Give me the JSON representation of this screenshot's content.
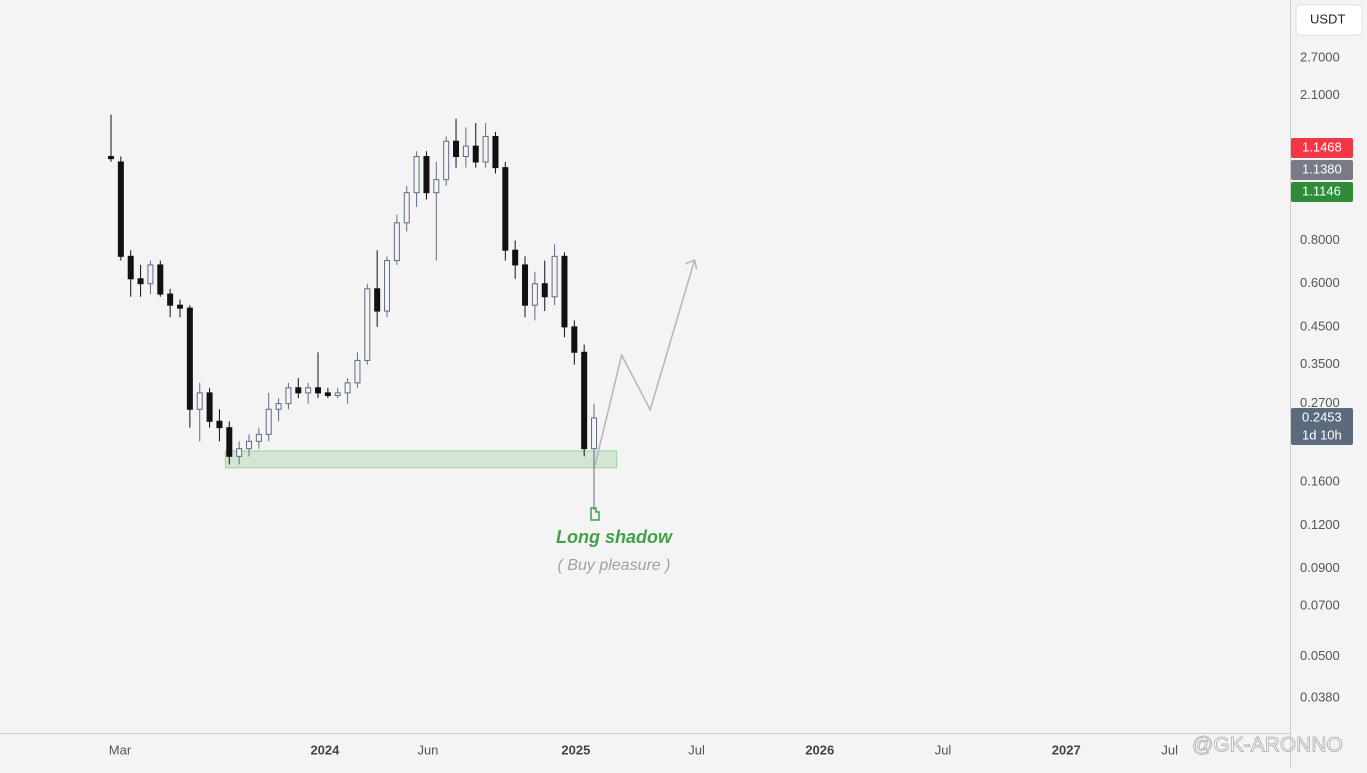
{
  "chart_data": {
    "type": "candlestick",
    "currency": "USDT",
    "log_scale": true,
    "up_color": "#5d6d85",
    "down_color": "#111111",
    "x": [
      0,
      1,
      2,
      3,
      4,
      5,
      6,
      7,
      8,
      9,
      10,
      11,
      12,
      13,
      14,
      15,
      16,
      17,
      18,
      19,
      20,
      21,
      22,
      23,
      24,
      25,
      26,
      27,
      28,
      29,
      30,
      31,
      32,
      33,
      34,
      35,
      36,
      37,
      38,
      39,
      40,
      41,
      42,
      43,
      44,
      45,
      46,
      47,
      48,
      49
    ],
    "open": [
      1.4,
      1.35,
      0.72,
      0.62,
      0.6,
      0.68,
      0.56,
      0.52,
      0.51,
      0.26,
      0.29,
      0.24,
      0.23,
      0.19,
      0.2,
      0.21,
      0.22,
      0.26,
      0.27,
      0.3,
      0.29,
      0.3,
      0.29,
      0.285,
      0.29,
      0.31,
      0.36,
      0.58,
      0.5,
      0.7,
      0.9,
      1.1,
      1.4,
      1.1,
      1.2,
      1.55,
      1.4,
      1.5,
      1.35,
      1.6,
      1.3,
      0.75,
      0.68,
      0.52,
      0.6,
      0.55,
      0.72,
      0.45,
      0.38,
      0.2
    ],
    "high": [
      1.85,
      1.4,
      0.75,
      0.68,
      0.7,
      0.7,
      0.58,
      0.54,
      0.52,
      0.31,
      0.3,
      0.26,
      0.24,
      0.21,
      0.22,
      0.23,
      0.29,
      0.28,
      0.31,
      0.32,
      0.31,
      0.38,
      0.3,
      0.3,
      0.32,
      0.38,
      0.6,
      0.75,
      0.72,
      0.95,
      1.15,
      1.45,
      1.45,
      1.35,
      1.6,
      1.8,
      1.7,
      1.75,
      1.75,
      1.65,
      1.35,
      0.8,
      0.72,
      0.65,
      0.7,
      0.78,
      0.74,
      0.47,
      0.4,
      0.27
    ],
    "low": [
      1.35,
      0.7,
      0.55,
      0.55,
      0.56,
      0.55,
      0.48,
      0.48,
      0.23,
      0.21,
      0.23,
      0.21,
      0.18,
      0.18,
      0.19,
      0.2,
      0.21,
      0.24,
      0.26,
      0.28,
      0.27,
      0.28,
      0.28,
      0.28,
      0.27,
      0.3,
      0.35,
      0.45,
      0.48,
      0.68,
      0.85,
      1.0,
      1.05,
      0.7,
      1.15,
      1.3,
      1.3,
      1.3,
      1.3,
      1.25,
      0.7,
      0.62,
      0.48,
      0.47,
      0.5,
      0.52,
      0.42,
      0.35,
      0.19,
      0.133
    ],
    "close": [
      1.38,
      0.72,
      0.62,
      0.6,
      0.68,
      0.56,
      0.52,
      0.51,
      0.26,
      0.29,
      0.24,
      0.23,
      0.19,
      0.2,
      0.21,
      0.22,
      0.26,
      0.27,
      0.3,
      0.29,
      0.3,
      0.29,
      0.285,
      0.29,
      0.31,
      0.36,
      0.58,
      0.5,
      0.7,
      0.9,
      1.1,
      1.4,
      1.1,
      1.2,
      1.55,
      1.4,
      1.5,
      1.35,
      1.6,
      1.3,
      0.75,
      0.68,
      0.52,
      0.6,
      0.55,
      0.72,
      0.45,
      0.38,
      0.2,
      0.2453
    ],
    "xlim": [
      -11.26,
      119.6
    ],
    "xticks": [
      {
        "value": 0.91,
        "label": "Mar"
      },
      {
        "value": 21.7,
        "label": "2024"
      },
      {
        "value": 32.15,
        "label": "Jun"
      },
      {
        "value": 47.16,
        "label": "2025"
      },
      {
        "value": 59.4,
        "label": "Jul"
      },
      {
        "value": 71.9,
        "label": "2026"
      },
      {
        "value": 84.4,
        "label": "Jul"
      },
      {
        "value": 96.9,
        "label": "2027"
      },
      {
        "value": 107.4,
        "label": "Jul"
      }
    ],
    "ylim": [
      0.0301,
      3.97
    ],
    "yticks": [
      {
        "value": 2.7,
        "label": "2.7000"
      },
      {
        "value": 2.1,
        "label": "2.1000"
      },
      {
        "value": 0.8,
        "label": "0.8000"
      },
      {
        "value": 0.6,
        "label": "0.6000"
      },
      {
        "value": 0.45,
        "label": "0.4500"
      },
      {
        "value": 0.35,
        "label": "0.3500"
      },
      {
        "value": 0.27,
        "label": "0.2700"
      },
      {
        "value": 0.16,
        "label": "0.1600"
      },
      {
        "value": 0.12,
        "label": "0.1200"
      },
      {
        "value": 0.09,
        "label": "0.0900"
      },
      {
        "value": 0.07,
        "label": "0.0700"
      },
      {
        "value": 0.05,
        "label": "0.0500"
      },
      {
        "value": 0.038,
        "label": "0.0380"
      }
    ],
    "zone": {
      "x": [
        11.6,
        51.3
      ],
      "y": [
        0.176,
        0.197
      ],
      "color": "#4caf50"
    },
    "projection": {
      "x": [
        49.1,
        51.8,
        54.7,
        59.2
      ],
      "y": [
        0.179,
        0.373,
        0.259,
        0.703
      ],
      "color": "#b5b5b5"
    },
    "annotations": [
      {
        "text": "Long shadow",
        "color": "#43a047"
      },
      {
        "text": "( Buy pleasure )",
        "color": "#a0a0a0"
      }
    ],
    "price_badges": [
      {
        "text": "1.1468",
        "color": "#f23645"
      },
      {
        "text": "1.1380",
        "color": "#787b86"
      },
      {
        "text": "1.1146",
        "color": "#2e8b3a"
      }
    ],
    "last_color": "#5b6b7d",
    "countdown": "1d 10h",
    "watermark": "@GK-ARONNO"
  }
}
